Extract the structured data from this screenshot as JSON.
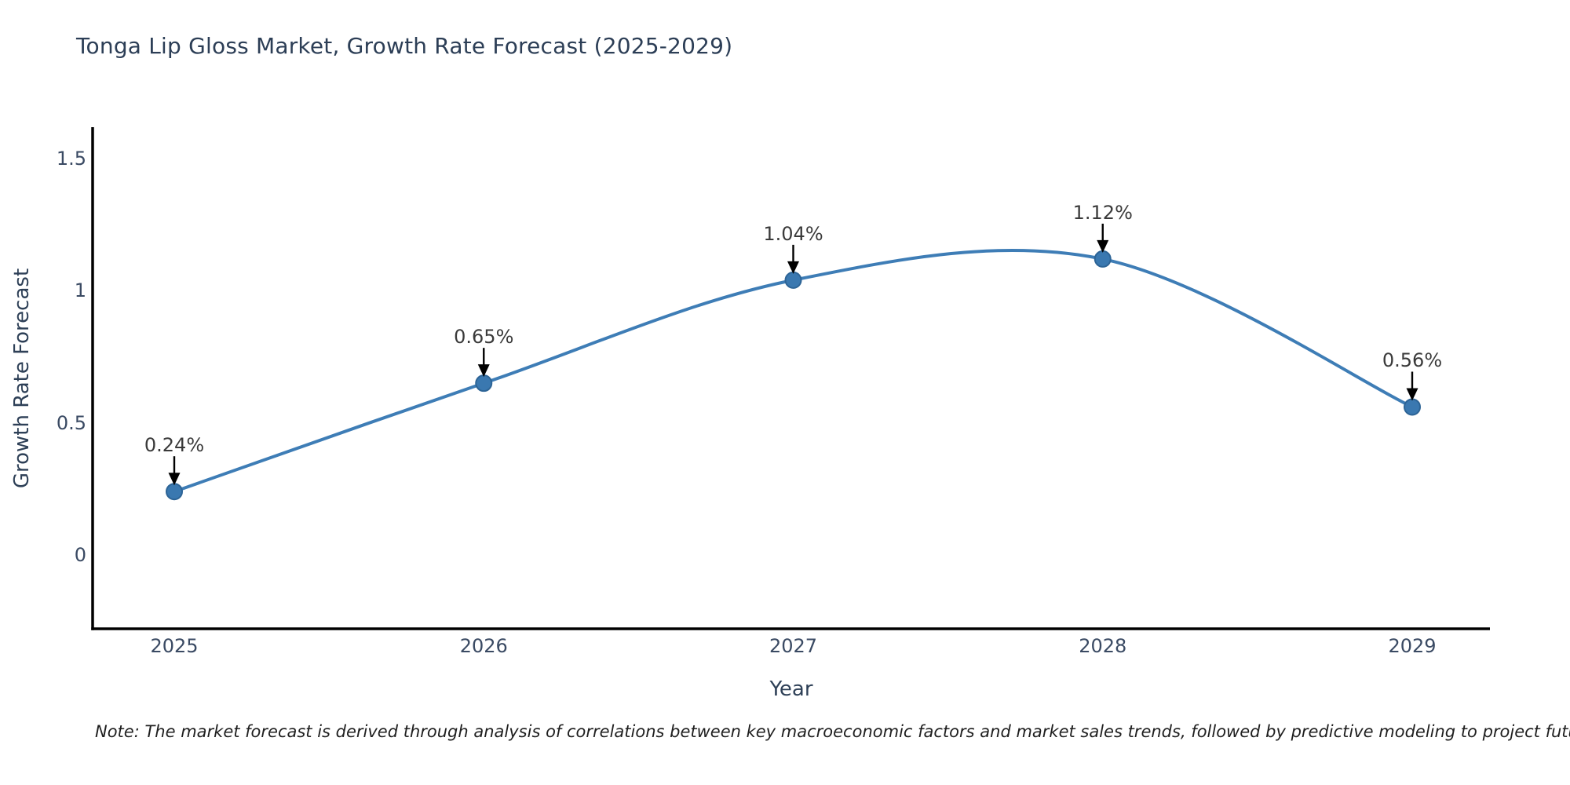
{
  "page": {
    "background": "#ffffff"
  },
  "note": "Note: The market forecast is derived through analysis of correlations between key macroeconomic factors and market sales trends, followed by predictive modeling to project future sales",
  "chart_data": {
    "type": "line",
    "title": "Tonga Lip Gloss Market, Growth Rate Forecast (2025-2029)",
    "xlabel": "Year",
    "ylabel": "Growth Rate Forecast",
    "x": [
      2025,
      2026,
      2027,
      2028,
      2029
    ],
    "y": [
      0.24,
      0.65,
      1.04,
      1.12,
      0.56
    ],
    "point_labels": [
      "0.24%",
      "0.65%",
      "1.04%",
      "1.12%",
      "0.56%"
    ],
    "x_tick_labels": [
      "2025",
      "2026",
      "2027",
      "2028",
      "2029"
    ],
    "y_ticks": [
      0,
      0.5,
      1,
      1.5
    ],
    "y_tick_labels": [
      "0",
      "0.5",
      "1",
      "1.5"
    ],
    "ylim": [
      -0.28,
      1.62
    ],
    "grid": false,
    "legend": "none",
    "smoothing": "spline",
    "line_color": "#3e7db6",
    "marker_fill": "#3a78b0",
    "marker_stroke": "#2d6496",
    "axis_color": "#000000",
    "annotation_arrow_color": "#000000",
    "title_color": "#2c3e56",
    "tick_color": "#3a4a63"
  }
}
